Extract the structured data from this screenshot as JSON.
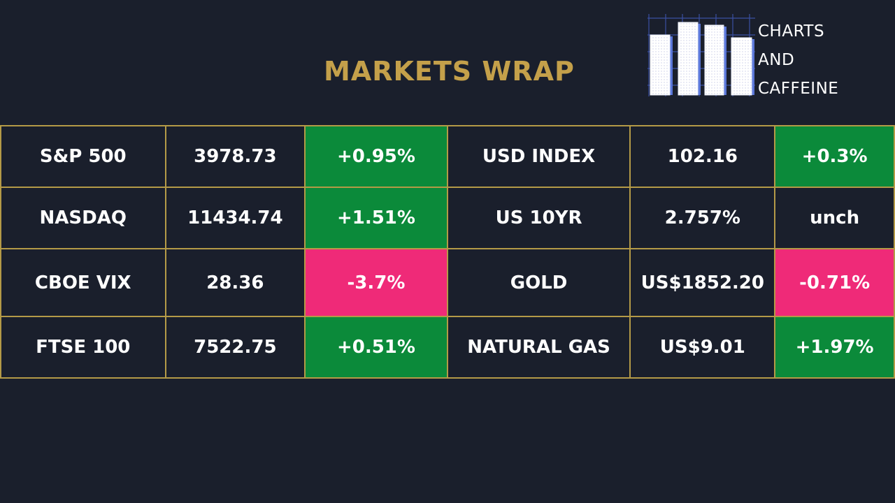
{
  "header": {
    "title": "MARKETS WRAP"
  },
  "logo": {
    "lines": [
      "CHARTS",
      "AND",
      "CAFFEINE"
    ],
    "icon": "bar-chart-icon"
  },
  "colors": {
    "background": "#1a1f2c",
    "title": "#c4a04a",
    "border": "#b49a47",
    "positive": "#0b8a3a",
    "negative": "#ef2a78"
  },
  "rows": [
    {
      "left": {
        "name": "S&P 500",
        "value": "3978.73",
        "change": "+0.95%",
        "direction": "up"
      },
      "right": {
        "name": "USD INDEX",
        "value": "102.16",
        "change": "+0.3%",
        "direction": "up"
      }
    },
    {
      "left": {
        "name": "NASDAQ",
        "value": "11434.74",
        "change": "+1.51%",
        "direction": "up"
      },
      "right": {
        "name": "US 10YR",
        "value": "2.757%",
        "change": "unch",
        "direction": "flat"
      }
    },
    {
      "left": {
        "name": "CBOE VIX",
        "value": "28.36",
        "change": "-3.7%",
        "direction": "down"
      },
      "right": {
        "name": "GOLD",
        "value": "US$1852.20",
        "change": "-0.71%",
        "direction": "down"
      }
    },
    {
      "left": {
        "name": "FTSE 100",
        "value": "7522.75",
        "change": "+0.51%",
        "direction": "up"
      },
      "right": {
        "name": "NATURAL GAS",
        "value": "US$9.01",
        "change": "+1.97%",
        "direction": "up"
      }
    }
  ]
}
